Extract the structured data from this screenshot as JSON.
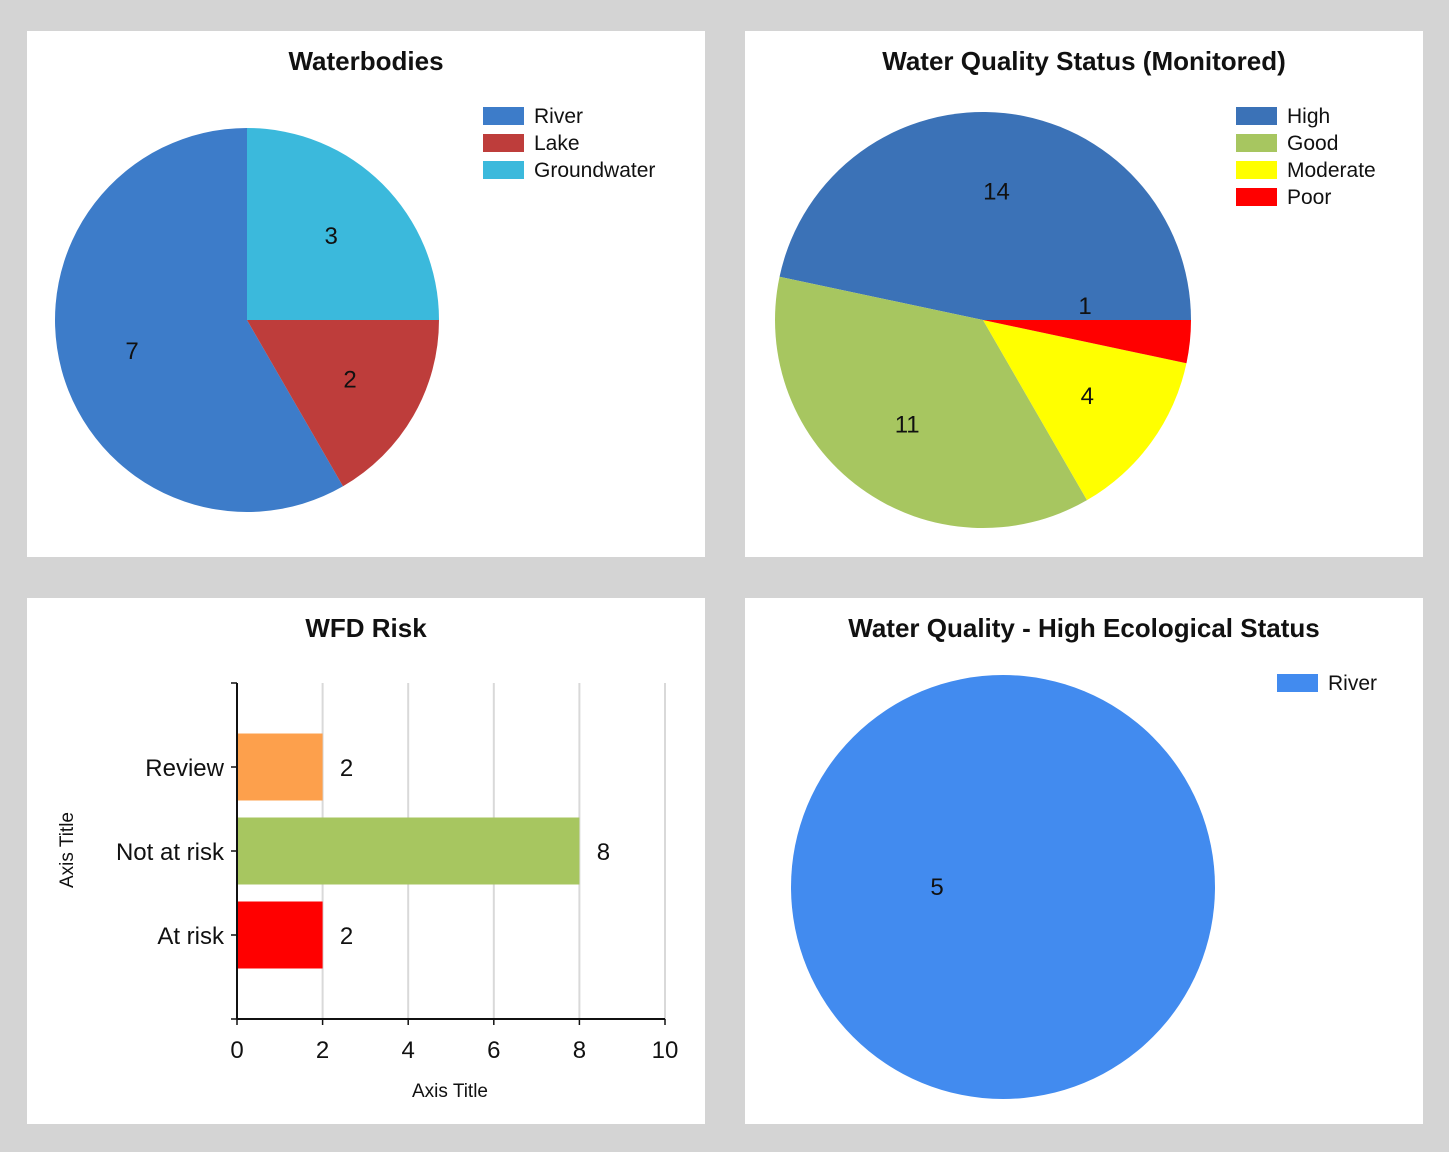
{
  "chart_data": [
    {
      "type": "pie",
      "title": "Waterbodies",
      "categories": [
        "River",
        "Lake",
        "Groundwater"
      ],
      "values": [
        7,
        2,
        3
      ],
      "colors": [
        "#3d7cc9",
        "#be3d3b",
        "#3bb9dc"
      ],
      "legend": "top-right"
    },
    {
      "type": "pie",
      "title": "Water Quality Status (Monitored)",
      "categories": [
        "High",
        "Good",
        "Moderate",
        "Poor"
      ],
      "values": [
        14,
        11,
        4,
        1
      ],
      "colors": [
        "#3b72b7",
        "#a7c660",
        "#ffff00",
        "#ff0000"
      ],
      "legend": "top-right"
    },
    {
      "type": "bar",
      "orientation": "horizontal",
      "title": "WFD Risk",
      "categories": [
        "Review",
        "Not at risk",
        "At risk"
      ],
      "values": [
        2,
        8,
        2
      ],
      "colors": [
        "#fda04c",
        "#a7c660",
        "#ff0000"
      ],
      "xlabel": "Axis Title",
      "ylabel": "Axis Title",
      "xlim": [
        0,
        10
      ],
      "xticks": [
        0,
        2,
        4,
        6,
        8,
        10
      ],
      "grid": true,
      "data_labels": true
    },
    {
      "type": "pie",
      "title": "Water Quality - High Ecological Status",
      "categories": [
        "River"
      ],
      "values": [
        5
      ],
      "colors": [
        "#428bef"
      ],
      "legend": "top-right"
    }
  ]
}
